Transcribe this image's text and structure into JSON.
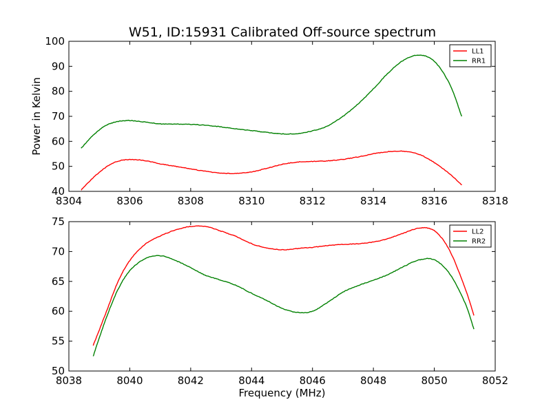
{
  "figure": {
    "title": "W51, ID:15931 Calibrated Off-source spectrum"
  },
  "colors": {
    "red": "#ff0000",
    "green": "#008000"
  },
  "chart_data": [
    {
      "type": "line",
      "title": "W51, ID:15931 Calibrated Off-source spectrum",
      "xlabel": "",
      "ylabel": "Power in Kelvin",
      "xlim": [
        8304,
        8318
      ],
      "ylim": [
        40,
        100
      ],
      "xticks": [
        "8304",
        "8306",
        "8308",
        "8310",
        "8312",
        "8314",
        "8316",
        "8318"
      ],
      "yticks": [
        "40",
        "50",
        "60",
        "70",
        "80",
        "90",
        "100"
      ],
      "grid": false,
      "legend": "top-right",
      "series": [
        {
          "name": "LL1",
          "color": "#ff0000",
          "x": [
            8304.4,
            8304.8,
            8305.2,
            8305.6,
            8306.0,
            8306.5,
            8307.0,
            8307.5,
            8308.0,
            8308.5,
            8309.0,
            8309.5,
            8310.0,
            8310.5,
            8311.0,
            8311.5,
            8312.0,
            8312.5,
            8313.0,
            8313.5,
            8314.0,
            8314.5,
            8315.0,
            8315.5,
            8316.0,
            8316.5,
            8316.9
          ],
          "y": [
            40.5,
            45.5,
            49.5,
            52.0,
            52.7,
            52.3,
            51.0,
            50.0,
            49.0,
            48.0,
            47.3,
            47.2,
            47.8,
            49.2,
            50.8,
            51.7,
            52.0,
            52.2,
            52.8,
            53.8,
            55.0,
            55.9,
            56.0,
            54.8,
            51.5,
            47.0,
            42.5
          ]
        },
        {
          "name": "RR1",
          "color": "#008000",
          "x": [
            8304.4,
            8304.8,
            8305.2,
            8305.6,
            8306.0,
            8306.5,
            8307.0,
            8307.5,
            8308.0,
            8308.5,
            8309.0,
            8309.5,
            8310.0,
            8310.5,
            8311.0,
            8311.5,
            8312.0,
            8312.5,
            8313.0,
            8313.5,
            8314.0,
            8314.5,
            8315.0,
            8315.5,
            8316.0,
            8316.5,
            8316.9
          ],
          "y": [
            57.2,
            62.5,
            66.2,
            67.9,
            68.3,
            67.7,
            67.0,
            66.9,
            66.8,
            66.4,
            65.8,
            65.0,
            64.3,
            63.6,
            63.0,
            63.1,
            64.2,
            66.2,
            70.0,
            75.0,
            81.0,
            87.5,
            92.5,
            94.5,
            92.0,
            83.0,
            70.0
          ]
        }
      ]
    },
    {
      "type": "line",
      "title": "",
      "xlabel": "Frequency (MHz)",
      "ylabel": "",
      "xlim": [
        8038,
        8052
      ],
      "ylim": [
        50,
        75
      ],
      "xticks": [
        "8038",
        "8040",
        "8042",
        "8044",
        "8046",
        "8048",
        "8050",
        "8052"
      ],
      "yticks": [
        "50",
        "55",
        "60",
        "65",
        "70",
        "75"
      ],
      "grid": false,
      "legend": "top-right",
      "series": [
        {
          "name": "LL2",
          "color": "#ff0000",
          "x": [
            8038.8,
            8039.2,
            8039.6,
            8040.0,
            8040.5,
            8041.0,
            8041.5,
            8042.0,
            8042.5,
            8043.0,
            8043.5,
            8044.0,
            8044.5,
            8045.0,
            8045.5,
            8046.0,
            8046.5,
            8047.0,
            8047.5,
            8048.0,
            8048.5,
            8049.0,
            8049.5,
            8050.0,
            8050.5,
            8051.0,
            8051.3
          ],
          "y": [
            54.3,
            59.5,
            64.8,
            68.5,
            71.2,
            72.6,
            73.6,
            74.2,
            74.2,
            73.4,
            72.5,
            71.3,
            70.6,
            70.3,
            70.5,
            70.7,
            71.0,
            71.2,
            71.3,
            71.6,
            72.2,
            73.1,
            73.9,
            73.5,
            70.2,
            64.0,
            59.3
          ]
        },
        {
          "name": "RR2",
          "color": "#008000",
          "x": [
            8038.8,
            8039.2,
            8039.6,
            8040.0,
            8040.5,
            8041.0,
            8041.5,
            8042.0,
            8042.5,
            8043.0,
            8043.5,
            8044.0,
            8044.5,
            8045.0,
            8045.5,
            8046.0,
            8046.5,
            8047.0,
            8047.5,
            8048.0,
            8048.5,
            8049.0,
            8049.5,
            8050.0,
            8050.5,
            8051.0,
            8051.3
          ],
          "y": [
            52.5,
            58.5,
            63.5,
            66.8,
            68.8,
            69.3,
            68.5,
            67.3,
            66.0,
            65.2,
            64.3,
            63.0,
            61.8,
            60.5,
            59.8,
            60.0,
            61.5,
            63.2,
            64.3,
            65.2,
            66.2,
            67.5,
            68.6,
            68.6,
            66.3,
            61.5,
            57.0
          ]
        }
      ]
    }
  ]
}
